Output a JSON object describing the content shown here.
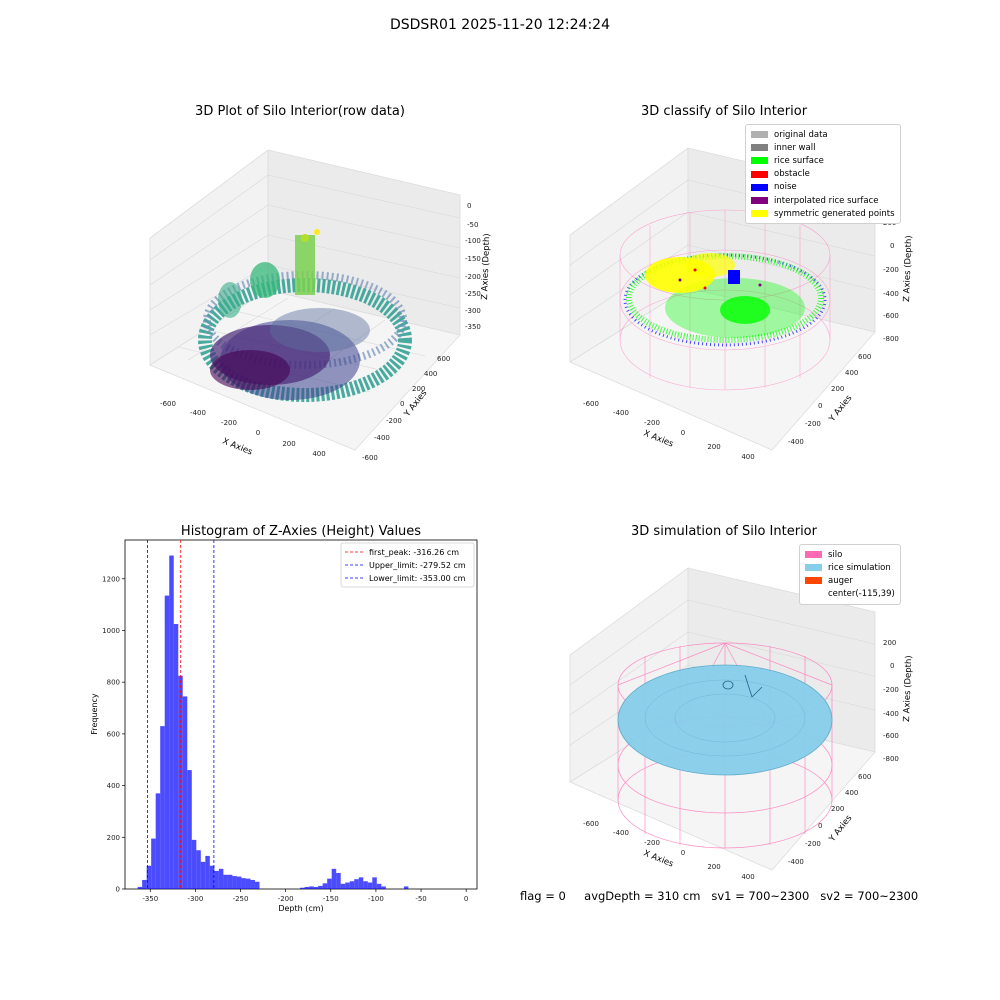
{
  "suptitle": "DSDSR01 2025-11-20 12:24:24",
  "footer": {
    "flag": "flag = 0",
    "avg": "avgDepth = 310 cm",
    "sv1": "sv1 = 700~2300",
    "sv2": "sv2 = 700~2300"
  },
  "plot_row": {
    "title": "3D Plot of Silo Interior(row data)",
    "xlabel": "X Axies",
    "ylabel": "Y Axies",
    "zlabel": "Z Axies (Depth)",
    "xticks": [
      "-600",
      "-400",
      "-200",
      "0",
      "200",
      "400"
    ],
    "yticks": [
      "-600",
      "-400",
      "-200",
      "0",
      "200",
      "400",
      "600"
    ],
    "zticks": [
      "0",
      "-50",
      "-100",
      "-150",
      "-200",
      "-250",
      "-300",
      "-350"
    ]
  },
  "plot_classify": {
    "title": "3D classify of Silo Interior",
    "xlabel": "X Axies",
    "ylabel": "Y Axies",
    "zlabel": "Z Axies (Depth)",
    "xticks": [
      "-600",
      "-400",
      "-200",
      "0",
      "200",
      "400"
    ],
    "yticks": [
      "-400",
      "-200",
      "0",
      "200",
      "400",
      "600"
    ],
    "zticks": [
      "200",
      "0",
      "-200",
      "-400",
      "-600",
      "-800"
    ],
    "legend": [
      {
        "label": "original data",
        "color": "#b0b0b0"
      },
      {
        "label": "inner wall",
        "color": "#808080"
      },
      {
        "label": "rice surface",
        "color": "#00ff00"
      },
      {
        "label": "obstacle",
        "color": "#ff0000"
      },
      {
        "label": "noise",
        "color": "#0000ff"
      },
      {
        "label": "interpolated rice surface",
        "color": "#800080"
      },
      {
        "label": "symmetric generated points",
        "color": "#ffff00"
      }
    ]
  },
  "plot_sim": {
    "title": "3D simulation of Silo Interior",
    "xlabel": "X Axies",
    "ylabel": "Y Axies",
    "zlabel": "Z Axies (Depth)",
    "xticks": [
      "-600",
      "-400",
      "-200",
      "0",
      "200",
      "400"
    ],
    "yticks": [
      "-400",
      "-200",
      "0",
      "200",
      "400",
      "600"
    ],
    "zticks": [
      "200",
      "0",
      "-200",
      "-400",
      "-600",
      "-800"
    ],
    "legend": [
      {
        "label": "silo",
        "color": "#ff69b4"
      },
      {
        "label": "rice simulation",
        "color": "#87ceeb"
      },
      {
        "label": "auger",
        "color": "#ff4500"
      },
      {
        "label": "center(-115,39)",
        "color": ""
      }
    ]
  },
  "chart_data": {
    "type": "bar",
    "title": "Histogram of Z-Axies (Height) Values",
    "xlabel": "Depth (cm)",
    "ylabel": "Frequency",
    "xlim": [
      -378,
      12
    ],
    "ylim": [
      0,
      1350
    ],
    "xticks": [
      -350,
      -300,
      -250,
      -200,
      -150,
      -100,
      -50,
      0
    ],
    "yticks": [
      0,
      200,
      400,
      600,
      800,
      1000,
      1200
    ],
    "bin_width": 5,
    "bar_color": "#0000ff",
    "bins": [
      {
        "x0": -364,
        "value": 8
      },
      {
        "x0": -359,
        "value": 35
      },
      {
        "x0": -354,
        "value": 90
      },
      {
        "x0": -349,
        "value": 195
      },
      {
        "x0": -344,
        "value": 370
      },
      {
        "x0": -339,
        "value": 630
      },
      {
        "x0": -334,
        "value": 1135
      },
      {
        "x0": -329,
        "value": 1290
      },
      {
        "x0": -324,
        "value": 1025
      },
      {
        "x0": -319,
        "value": 825
      },
      {
        "x0": -314,
        "value": 745
      },
      {
        "x0": -309,
        "value": 460
      },
      {
        "x0": -304,
        "value": 190
      },
      {
        "x0": -299,
        "value": 150
      },
      {
        "x0": -294,
        "value": 105
      },
      {
        "x0": -289,
        "value": 128
      },
      {
        "x0": -284,
        "value": 90
      },
      {
        "x0": -279,
        "value": 70
      },
      {
        "x0": -274,
        "value": 78
      },
      {
        "x0": -269,
        "value": 55
      },
      {
        "x0": -264,
        "value": 55
      },
      {
        "x0": -259,
        "value": 50
      },
      {
        "x0": -254,
        "value": 48
      },
      {
        "x0": -249,
        "value": 42
      },
      {
        "x0": -244,
        "value": 40
      },
      {
        "x0": -239,
        "value": 35
      },
      {
        "x0": -234,
        "value": 28
      },
      {
        "x0": -184,
        "value": 5
      },
      {
        "x0": -179,
        "value": 8
      },
      {
        "x0": -174,
        "value": 10
      },
      {
        "x0": -169,
        "value": 8
      },
      {
        "x0": -164,
        "value": 12
      },
      {
        "x0": -159,
        "value": 22
      },
      {
        "x0": -154,
        "value": 40
      },
      {
        "x0": -149,
        "value": 78
      },
      {
        "x0": -144,
        "value": 62
      },
      {
        "x0": -139,
        "value": 20
      },
      {
        "x0": -134,
        "value": 25
      },
      {
        "x0": -129,
        "value": 30
      },
      {
        "x0": -124,
        "value": 38
      },
      {
        "x0": -119,
        "value": 45
      },
      {
        "x0": -114,
        "value": 30
      },
      {
        "x0": -109,
        "value": 25
      },
      {
        "x0": -104,
        "value": 45
      },
      {
        "x0": -99,
        "value": 20
      },
      {
        "x0": -94,
        "value": 10
      },
      {
        "x0": -69,
        "value": 10
      }
    ],
    "vlines": [
      {
        "x": -316.26,
        "color": "#ff0000",
        "label": "first_peak: -316.26 cm"
      },
      {
        "x": -279.52,
        "color": "#0000ff",
        "label": "Upper_limit: -279.52 cm"
      },
      {
        "x": -353.0,
        "color": "#0000ff",
        "label": "Lower_limit: -353.00 cm"
      }
    ],
    "legend_position": "upper right"
  }
}
